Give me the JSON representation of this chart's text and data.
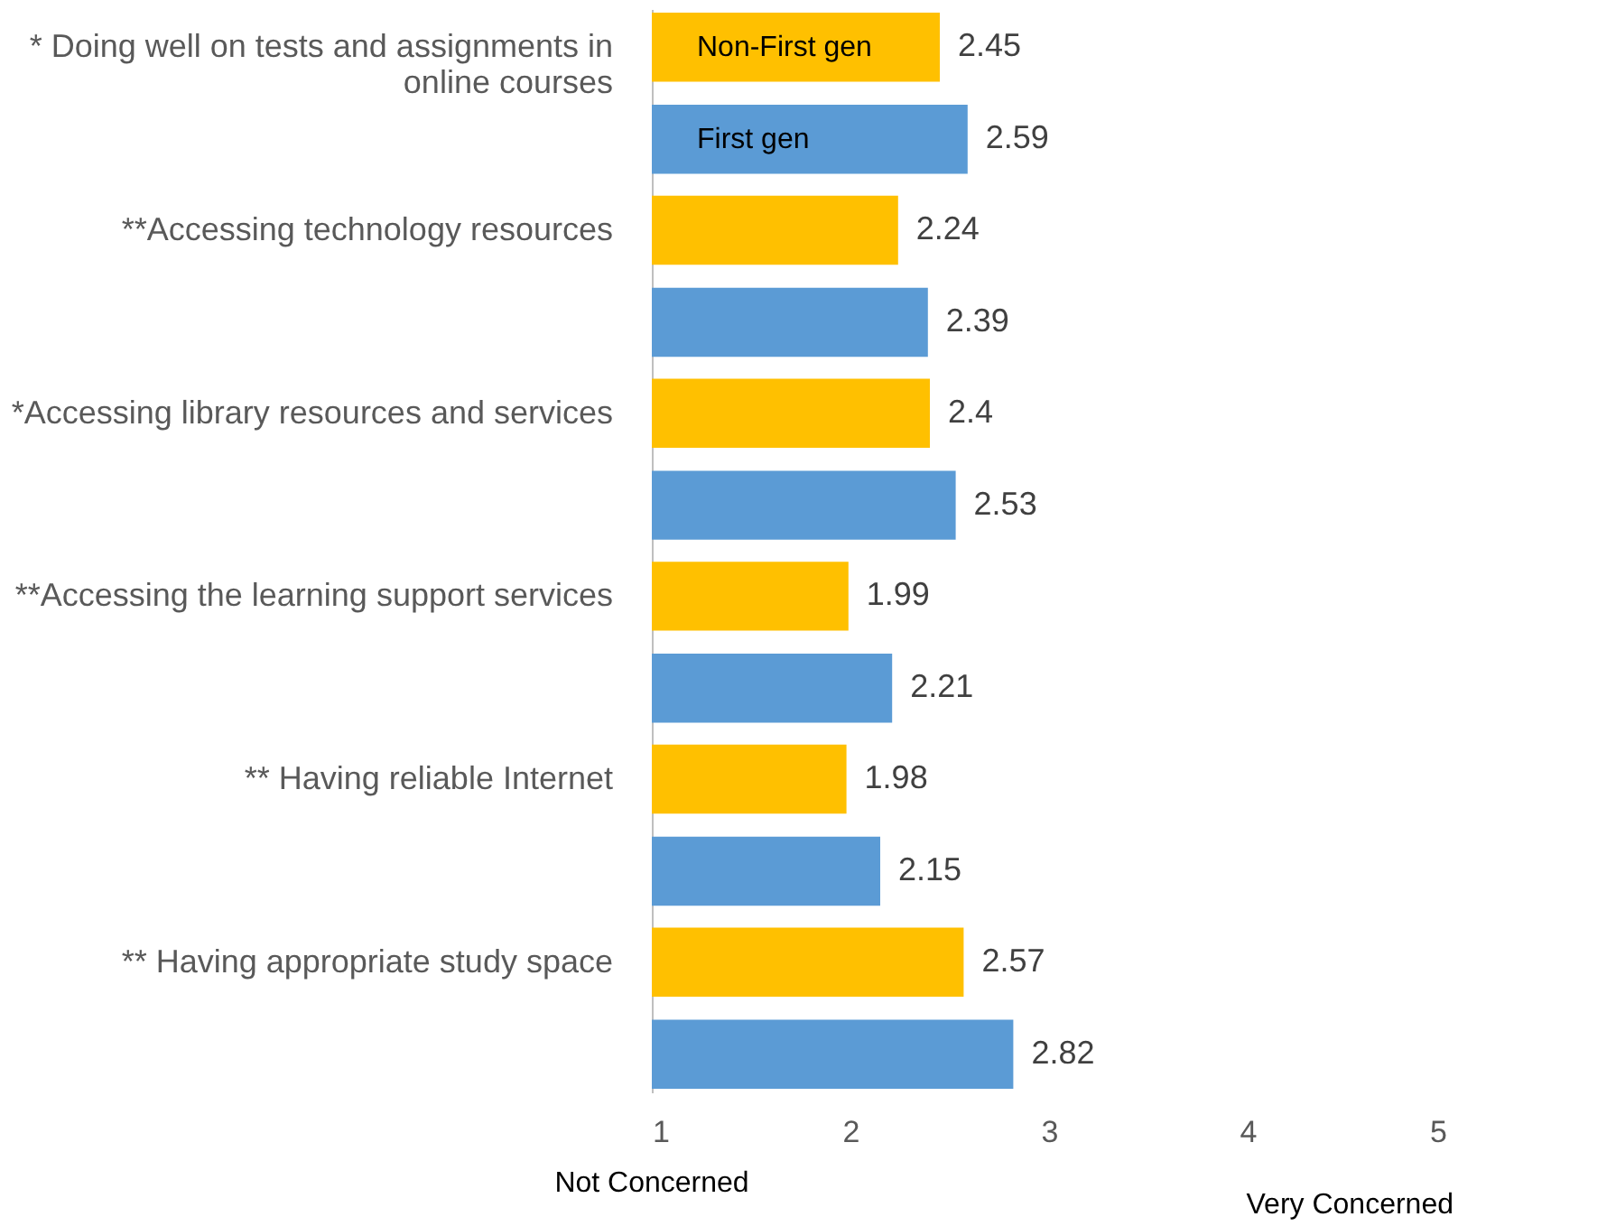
{
  "chart_data": {
    "type": "bar",
    "orientation": "horizontal",
    "categories": [
      "* Doing well on tests and assignments in online courses",
      "**Accessing technology resources",
      "*Accessing library resources and services",
      "**Accessing the learning support services",
      "** Having reliable Internet",
      "** Having appropriate study space"
    ],
    "series": [
      {
        "name": "Non-First gen",
        "color": "#ffc000",
        "values": [
          2.45,
          2.24,
          2.4,
          1.99,
          1.98,
          2.57
        ]
      },
      {
        "name": "First gen",
        "color": "#5b9bd5",
        "values": [
          2.59,
          2.39,
          2.53,
          2.21,
          2.15,
          2.82
        ]
      }
    ],
    "xlim": [
      1,
      5
    ],
    "xticks": [
      1,
      2,
      3,
      4,
      5
    ],
    "data_labels": true,
    "grid": false,
    "annotations": [
      "Not Concerned",
      "Very Concerned"
    ]
  }
}
